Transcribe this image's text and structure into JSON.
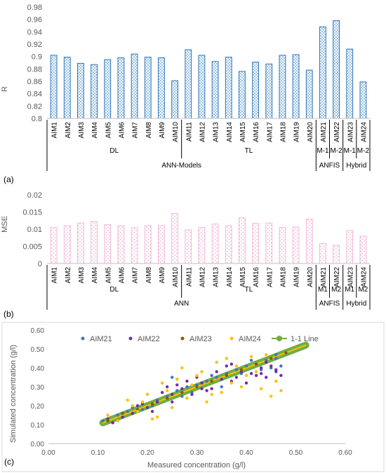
{
  "chart_data": [
    {
      "type": "bar",
      "panel_label": "(a)",
      "ylabel": "R",
      "ylim": [
        0.8,
        0.98
      ],
      "yticks": [
        "0.8",
        "0.82",
        "0.84",
        "0.86",
        "0.88",
        "0.9",
        "0.92",
        "0.94",
        "0.96",
        "0.98"
      ],
      "categories": [
        "AIM1",
        "AIM2",
        "AIM3",
        "AIM4",
        "AIM5",
        "AIM6",
        "AIM7",
        "AIM8",
        "AIM9",
        "AIM10",
        "AIM11",
        "AIM12",
        "AIM13",
        "AIM14",
        "AIM15",
        "AIM16",
        "AIM17",
        "AIM18",
        "AIM19",
        "AIM20",
        "AIM21",
        "AIM22",
        "AIM23",
        "AIM24"
      ],
      "values": [
        0.902,
        0.899,
        0.889,
        0.887,
        0.895,
        0.898,
        0.904,
        0.899,
        0.898,
        0.861,
        0.911,
        0.902,
        0.892,
        0.899,
        0.876,
        0.891,
        0.888,
        0.902,
        0.903,
        0.878,
        0.948,
        0.958,
        0.912,
        0.859
      ],
      "bar_color": "#2e75b6",
      "group_rows": [
        [
          {
            "label": "DL",
            "span": 10
          },
          {
            "label": "TL",
            "span": 10
          },
          {
            "label": "M-1",
            "span": 1
          },
          {
            "label": "M-2",
            "span": 1
          },
          {
            "label": "M-1",
            "span": 1
          },
          {
            "label": "M-2",
            "span": 1
          }
        ],
        [
          {
            "label": "ANN-Models",
            "span": 20
          },
          {
            "label": "ANFIS",
            "span": 2
          },
          {
            "label": "Hybrid",
            "span": 2
          }
        ]
      ],
      "grid": false
    },
    {
      "type": "bar",
      "panel_label": "(b)",
      "ylabel": "MSE",
      "ylim": [
        0,
        0.02
      ],
      "yticks": [
        "0",
        "0.005",
        "0.01",
        "0.015",
        "0.02"
      ],
      "categories": [
        "AIM1",
        "AIM2",
        "AIM3",
        "AIM4",
        "AIM5",
        "AIM6",
        "AIM7",
        "AIM8",
        "AIM9",
        "AIM10",
        "AIM11",
        "AIM12",
        "AIM13",
        "AIM14",
        "AIM15",
        "AIM16",
        "AIM17",
        "AIM18",
        "AIM19",
        "AIM20",
        "AIM21",
        "AIM22",
        "AIM23",
        "AIM24"
      ],
      "values": [
        0.0105,
        0.011,
        0.0118,
        0.0122,
        0.0113,
        0.011,
        0.0104,
        0.011,
        0.0111,
        0.0146,
        0.0098,
        0.0105,
        0.0115,
        0.011,
        0.0133,
        0.0117,
        0.0118,
        0.0105,
        0.0106,
        0.0129,
        0.0058,
        0.0053,
        0.0096,
        0.008
      ],
      "bar_color": "#f4b6d8",
      "group_rows": [
        [
          {
            "label": "DL",
            "span": 10
          },
          {
            "label": "TL",
            "span": 10
          },
          {
            "label": "M1",
            "span": 1
          },
          {
            "label": "M2",
            "span": 1
          },
          {
            "label": "M1",
            "span": 1
          },
          {
            "label": "M2",
            "span": 1
          }
        ],
        [
          {
            "label": "ANN",
            "span": 20
          },
          {
            "label": "ANFIS",
            "span": 2
          },
          {
            "label": "Hybrid",
            "span": 2
          }
        ]
      ],
      "grid": false
    },
    {
      "type": "scatter",
      "panel_label": "(c)",
      "xlabel": "Measured concentration (g/l)",
      "ylabel": "Simulated concentration (g/l)",
      "xlim": [
        0,
        0.6
      ],
      "ylim": [
        0,
        0.6
      ],
      "xticks": [
        "0.00",
        "0.10",
        "0.20",
        "0.30",
        "0.40",
        "0.50",
        "0.60"
      ],
      "yticks": [
        "0.00",
        "0.10",
        "0.20",
        "0.30",
        "0.40",
        "0.50",
        "0.60"
      ],
      "legend_position": "top",
      "series": [
        {
          "name": "AIM21",
          "color": "#4472c4",
          "points": [
            [
              0.11,
              0.12
            ],
            [
              0.14,
              0.15
            ],
            [
              0.17,
              0.19
            ],
            [
              0.19,
              0.18
            ],
            [
              0.21,
              0.2
            ],
            [
              0.24,
              0.25
            ],
            [
              0.26,
              0.28
            ],
            [
              0.28,
              0.3
            ],
            [
              0.3,
              0.31
            ],
            [
              0.32,
              0.33
            ],
            [
              0.34,
              0.35
            ],
            [
              0.36,
              0.37
            ],
            [
              0.38,
              0.39
            ],
            [
              0.4,
              0.41
            ],
            [
              0.42,
              0.42
            ],
            [
              0.44,
              0.44
            ],
            [
              0.46,
              0.45
            ],
            [
              0.47,
              0.41
            ],
            [
              0.45,
              0.4
            ],
            [
              0.43,
              0.39
            ],
            [
              0.35,
              0.3
            ],
            [
              0.33,
              0.36
            ],
            [
              0.27,
              0.25
            ],
            [
              0.22,
              0.23
            ],
            [
              0.16,
              0.17
            ],
            [
              0.25,
              0.35
            ],
            [
              0.29,
              0.27
            ],
            [
              0.39,
              0.37
            ],
            [
              0.41,
              0.44
            ],
            [
              0.46,
              0.47
            ]
          ]
        },
        {
          "name": "AIM22",
          "color": "#7030a0",
          "points": [
            [
              0.12,
              0.13
            ],
            [
              0.15,
              0.14
            ],
            [
              0.18,
              0.2
            ],
            [
              0.2,
              0.19
            ],
            [
              0.22,
              0.22
            ],
            [
              0.23,
              0.27
            ],
            [
              0.25,
              0.22
            ],
            [
              0.27,
              0.29
            ],
            [
              0.29,
              0.26
            ],
            [
              0.31,
              0.32
            ],
            [
              0.33,
              0.29
            ],
            [
              0.35,
              0.34
            ],
            [
              0.37,
              0.33
            ],
            [
              0.39,
              0.38
            ],
            [
              0.41,
              0.37
            ],
            [
              0.43,
              0.4
            ],
            [
              0.45,
              0.41
            ],
            [
              0.46,
              0.38
            ],
            [
              0.47,
              0.36
            ],
            [
              0.44,
              0.35
            ],
            [
              0.42,
              0.36
            ],
            [
              0.4,
              0.32
            ],
            [
              0.36,
              0.41
            ],
            [
              0.34,
              0.38
            ],
            [
              0.3,
              0.35
            ],
            [
              0.28,
              0.33
            ],
            [
              0.26,
              0.31
            ],
            [
              0.24,
              0.3
            ],
            [
              0.21,
              0.17
            ],
            [
              0.19,
              0.21
            ],
            [
              0.17,
              0.16
            ],
            [
              0.13,
              0.11
            ],
            [
              0.32,
              0.28
            ],
            [
              0.38,
              0.35
            ],
            [
              0.44,
              0.43
            ],
            [
              0.46,
              0.39
            ],
            [
              0.43,
              0.37
            ],
            [
              0.37,
              0.42
            ],
            [
              0.31,
              0.29
            ],
            [
              0.25,
              0.26
            ]
          ]
        },
        {
          "name": "AIM23",
          "color": "#7f6000",
          "points": [
            [
              0.12,
              0.12
            ],
            [
              0.15,
              0.16
            ],
            [
              0.18,
              0.18
            ],
            [
              0.21,
              0.21
            ],
            [
              0.24,
              0.24
            ],
            [
              0.27,
              0.27
            ],
            [
              0.3,
              0.3
            ],
            [
              0.33,
              0.33
            ],
            [
              0.36,
              0.36
            ],
            [
              0.39,
              0.39
            ],
            [
              0.42,
              0.42
            ],
            [
              0.45,
              0.45
            ],
            [
              0.48,
              0.48
            ]
          ]
        },
        {
          "name": "AIM24",
          "color": "#ffc000",
          "points": [
            [
              0.12,
              0.15
            ],
            [
              0.14,
              0.12
            ],
            [
              0.16,
              0.23
            ],
            [
              0.18,
              0.17
            ],
            [
              0.2,
              0.26
            ],
            [
              0.22,
              0.14
            ],
            [
              0.23,
              0.32
            ],
            [
              0.25,
              0.19
            ],
            [
              0.27,
              0.4
            ],
            [
              0.28,
              0.24
            ],
            [
              0.3,
              0.36
            ],
            [
              0.32,
              0.22
            ],
            [
              0.34,
              0.43
            ],
            [
              0.35,
              0.27
            ],
            [
              0.37,
              0.32
            ],
            [
              0.39,
              0.3
            ],
            [
              0.41,
              0.46
            ],
            [
              0.43,
              0.29
            ],
            [
              0.44,
              0.47
            ],
            [
              0.45,
              0.25
            ],
            [
              0.46,
              0.33
            ],
            [
              0.47,
              0.28
            ],
            [
              0.38,
              0.41
            ],
            [
              0.33,
              0.26
            ],
            [
              0.29,
              0.31
            ],
            [
              0.24,
              0.28
            ],
            [
              0.19,
              0.22
            ],
            [
              0.26,
              0.34
            ],
            [
              0.4,
              0.36
            ],
            [
              0.42,
              0.38
            ],
            [
              0.36,
              0.45
            ],
            [
              0.31,
              0.38
            ],
            [
              0.21,
              0.13
            ],
            [
              0.17,
              0.2
            ]
          ]
        }
      ],
      "line_series": {
        "name": "1-1 Line",
        "color": "#70ad47",
        "x": [
          0.11,
          0.52
        ],
        "y": [
          0.11,
          0.52
        ]
      }
    }
  ]
}
